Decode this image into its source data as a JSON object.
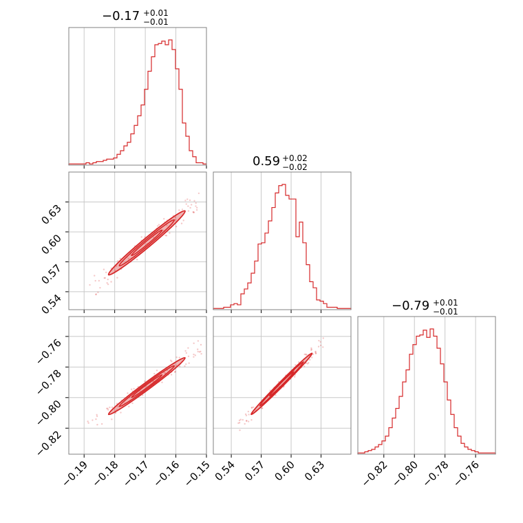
{
  "chart_data": {
    "type": "corner",
    "color": "#d62728",
    "grid": true,
    "parameters": [
      {
        "title_main": "−0.17",
        "title_plus": "+0.01",
        "title_minus": "−0.01",
        "range": [
          -0.195,
          -0.15
        ],
        "ticks": [
          -0.19,
          -0.18,
          -0.17,
          -0.16,
          -0.15
        ],
        "tick_labels": [
          "−0.19",
          "−0.18",
          "−0.17",
          "−0.16",
          "−0.15"
        ]
      },
      {
        "title_main": "0.59",
        "title_plus": "+0.02",
        "title_minus": "−0.02",
        "range": [
          0.522,
          0.66
        ],
        "ticks": [
          0.54,
          0.57,
          0.6,
          0.63
        ],
        "tick_labels": [
          "0.54",
          "0.57",
          "0.60",
          "0.63"
        ]
      },
      {
        "title_main": "−0.79",
        "title_plus": "+0.01",
        "title_minus": "−0.01",
        "range": [
          -0.837,
          -0.747
        ],
        "ticks": [
          -0.82,
          -0.8,
          -0.78,
          -0.76
        ],
        "tick_labels": [
          "−0.82",
          "−0.80",
          "−0.78",
          "−0.76"
        ]
      }
    ],
    "histograms": [
      {
        "param": 0,
        "values": [
          1,
          1,
          1,
          1,
          1,
          2,
          1,
          2,
          3,
          3,
          4,
          5,
          5,
          6,
          9,
          12,
          16,
          19,
          26,
          33,
          41,
          50,
          63,
          78,
          90,
          100,
          101,
          103,
          100,
          104,
          96,
          80,
          63,
          35,
          24,
          12,
          7,
          2,
          2,
          1
        ]
      },
      {
        "param": 1,
        "values": [
          1,
          1,
          1,
          2,
          2,
          4,
          5,
          4,
          13,
          17,
          22,
          30,
          40,
          54,
          55,
          63,
          73,
          84,
          96,
          102,
          103,
          94,
          91,
          91,
          60,
          72,
          55,
          37,
          23,
          18,
          8,
          7,
          5,
          2,
          2,
          2,
          1,
          1,
          1,
          1
        ]
      },
      {
        "param": 2,
        "values": [
          1,
          1,
          2,
          3,
          4,
          6,
          8,
          11,
          15,
          22,
          30,
          38,
          48,
          60,
          70,
          83,
          91,
          98,
          99,
          103,
          97,
          104,
          98,
          88,
          75,
          60,
          45,
          33,
          22,
          15,
          9,
          6,
          4,
          3,
          2,
          1,
          1,
          1,
          1,
          1
        ]
      }
    ],
    "panels_2d": [
      {
        "x_param": 0,
        "y_param": 1,
        "center": [
          -0.167,
          0.591
        ],
        "end_low": [
          -0.182,
          0.557
        ],
        "end_high": [
          -0.157,
          0.621
        ],
        "width": 0.0085
      },
      {
        "x_param": 0,
        "y_param": 2,
        "center": [
          -0.167,
          -0.791
        ],
        "end_low": [
          -0.182,
          -0.811
        ],
        "end_high": [
          -0.157,
          -0.774
        ],
        "width": 0.0045
      },
      {
        "x_param": 1,
        "y_param": 2,
        "center": [
          0.591,
          -0.791
        ],
        "end_low": [
          0.56,
          -0.811
        ],
        "end_high": [
          0.621,
          -0.771
        ],
        "width": 0.003
      }
    ]
  }
}
